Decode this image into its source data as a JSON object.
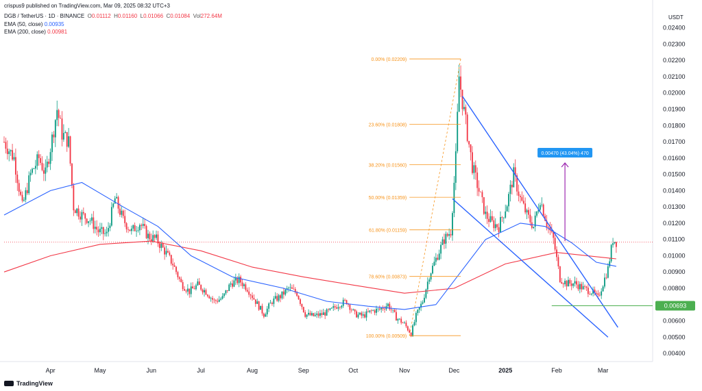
{
  "header": {
    "publisher": "crispus9 published on TradingView.com, Mar 09, 2025 08:32 UTC+3",
    "symbol": "DGB / TetherUS · 1D · BINANCE",
    "ohlc": {
      "o_label": "O",
      "o": "0.01112",
      "h_label": "H",
      "h": "0.01160",
      "l_label": "L",
      "l": "0.01066",
      "c_label": "C",
      "c": "0.01084",
      "vol_label": "Vol",
      "vol": "272.64M"
    },
    "ema50_label": "EMA (50, close)",
    "ema50_value": "0.00935",
    "ema200_label": "EMA (200, close)",
    "ema200_value": "0.00981"
  },
  "branding": "TradingView",
  "colors": {
    "up": "#089981",
    "down": "#f23645",
    "ema50": "#2962ff",
    "ema200": "#f23645",
    "fib": "#f7931a",
    "channel": "#2962ff",
    "support": "#4caf50",
    "measure": "#9c27b0",
    "measure_box": "#2196f3"
  },
  "chart_data": {
    "type": "candlestick",
    "y_axis": {
      "unit": "USDT",
      "min": 0.0035,
      "max": 0.0247,
      "ticks": [
        "0.00400",
        "0.00500",
        "0.00600",
        "0.00700",
        "0.00800",
        "0.00900",
        "0.01000",
        "0.01100",
        "0.01200",
        "0.01300",
        "0.01400",
        "0.01500",
        "0.01600",
        "0.01700",
        "0.01800",
        "0.01900",
        "0.02000",
        "0.02100",
        "0.02200",
        "0.02300",
        "0.02400"
      ]
    },
    "x_axis": {
      "labels": [
        {
          "label": "Apr",
          "date": "2024-04-01"
        },
        {
          "label": "May",
          "date": "2024-05-01"
        },
        {
          "label": "Jun",
          "date": "2024-06-01"
        },
        {
          "label": "Jul",
          "date": "2024-07-01"
        },
        {
          "label": "Aug",
          "date": "2024-08-01"
        },
        {
          "label": "Sep",
          "date": "2024-09-01"
        },
        {
          "label": "Oct",
          "date": "2024-10-01"
        },
        {
          "label": "Nov",
          "date": "2024-11-01"
        },
        {
          "label": "Dec",
          "date": "2024-12-01"
        },
        {
          "label": "2025",
          "date": "2025-01-01",
          "bold": true
        },
        {
          "label": "Feb",
          "date": "2025-02-01"
        },
        {
          "label": "Mar",
          "date": "2025-03-01"
        }
      ],
      "start": "2024-03-04",
      "end": "2025-03-31"
    },
    "close_series": [
      [
        "2024-03-04",
        0.017
      ],
      [
        "2024-03-10",
        0.016
      ],
      [
        "2024-03-15",
        0.013
      ],
      [
        "2024-03-20",
        0.015
      ],
      [
        "2024-03-25",
        0.016
      ],
      [
        "2024-03-29",
        0.015
      ],
      [
        "2024-04-02",
        0.0172
      ],
      [
        "2024-04-05",
        0.019
      ],
      [
        "2024-04-08",
        0.0175
      ],
      [
        "2024-04-12",
        0.017
      ],
      [
        "2024-04-15",
        0.013
      ],
      [
        "2024-04-20",
        0.0125
      ],
      [
        "2024-04-25",
        0.0122
      ],
      [
        "2024-04-30",
        0.0115
      ],
      [
        "2024-05-05",
        0.0113
      ],
      [
        "2024-05-10",
        0.0135
      ],
      [
        "2024-05-15",
        0.0122
      ],
      [
        "2024-05-20",
        0.0115
      ],
      [
        "2024-05-25",
        0.012
      ],
      [
        "2024-05-30",
        0.0112
      ],
      [
        "2024-06-04",
        0.011
      ],
      [
        "2024-06-09",
        0.0103
      ],
      [
        "2024-06-14",
        0.0095
      ],
      [
        "2024-06-19",
        0.0083
      ],
      [
        "2024-06-24",
        0.0078
      ],
      [
        "2024-06-29",
        0.0082
      ],
      [
        "2024-07-04",
        0.0078
      ],
      [
        "2024-07-09",
        0.0072
      ],
      [
        "2024-07-14",
        0.0074
      ],
      [
        "2024-07-19",
        0.0083
      ],
      [
        "2024-07-24",
        0.0085
      ],
      [
        "2024-07-29",
        0.008
      ],
      [
        "2024-08-03",
        0.0072
      ],
      [
        "2024-08-08",
        0.0064
      ],
      [
        "2024-08-13",
        0.0072
      ],
      [
        "2024-08-18",
        0.0075
      ],
      [
        "2024-08-23",
        0.008
      ],
      [
        "2024-08-28",
        0.0077
      ],
      [
        "2024-09-02",
        0.0064
      ],
      [
        "2024-09-07",
        0.0063
      ],
      [
        "2024-09-12",
        0.0064
      ],
      [
        "2024-09-17",
        0.0066
      ],
      [
        "2024-09-22",
        0.007
      ],
      [
        "2024-09-27",
        0.0072
      ],
      [
        "2024-10-02",
        0.0064
      ],
      [
        "2024-10-07",
        0.0063
      ],
      [
        "2024-10-12",
        0.0066
      ],
      [
        "2024-10-17",
        0.0067
      ],
      [
        "2024-10-22",
        0.007
      ],
      [
        "2024-10-27",
        0.0062
      ],
      [
        "2024-11-01",
        0.0058
      ],
      [
        "2024-11-05",
        0.0052
      ],
      [
        "2024-11-08",
        0.0063
      ],
      [
        "2024-11-12",
        0.0072
      ],
      [
        "2024-11-16",
        0.0088
      ],
      [
        "2024-11-20",
        0.0098
      ],
      [
        "2024-11-25",
        0.011
      ],
      [
        "2024-11-29",
        0.0115
      ],
      [
        "2024-12-02",
        0.016
      ],
      [
        "2024-12-04",
        0.021
      ],
      [
        "2024-12-06",
        0.0195
      ],
      [
        "2024-12-09",
        0.0175
      ],
      [
        "2024-12-12",
        0.0155
      ],
      [
        "2024-12-16",
        0.014
      ],
      [
        "2024-12-20",
        0.0125
      ],
      [
        "2024-12-24",
        0.012
      ],
      [
        "2024-12-28",
        0.0118
      ],
      [
        "2025-01-02",
        0.0132
      ],
      [
        "2025-01-06",
        0.015
      ],
      [
        "2025-01-10",
        0.0135
      ],
      [
        "2025-01-14",
        0.0125
      ],
      [
        "2025-01-18",
        0.0118
      ],
      [
        "2025-01-22",
        0.0135
      ],
      [
        "2025-01-26",
        0.012
      ],
      [
        "2025-01-30",
        0.011
      ],
      [
        "2025-02-03",
        0.0086
      ],
      [
        "2025-02-07",
        0.0083
      ],
      [
        "2025-02-12",
        0.0083
      ],
      [
        "2025-02-17",
        0.008
      ],
      [
        "2025-02-22",
        0.0078
      ],
      [
        "2025-02-26",
        0.0074
      ],
      [
        "2025-03-01",
        0.0083
      ],
      [
        "2025-03-04",
        0.0092
      ],
      [
        "2025-03-07",
        0.011
      ],
      [
        "2025-03-09",
        0.01084
      ]
    ],
    "ema50_series": [
      [
        "2024-03-04",
        0.0125
      ],
      [
        "2024-04-01",
        0.014
      ],
      [
        "2024-04-20",
        0.0145
      ],
      [
        "2024-05-15",
        0.013
      ],
      [
        "2024-06-05",
        0.0118
      ],
      [
        "2024-06-25",
        0.01
      ],
      [
        "2024-07-20",
        0.0087
      ],
      [
        "2024-08-20",
        0.008
      ],
      [
        "2024-09-15",
        0.0072
      ],
      [
        "2024-10-10",
        0.0069
      ],
      [
        "2024-11-01",
        0.0067
      ],
      [
        "2024-11-20",
        0.007
      ],
      [
        "2024-12-05",
        0.009
      ],
      [
        "2024-12-20",
        0.011
      ],
      [
        "2025-01-10",
        0.012
      ],
      [
        "2025-01-25",
        0.0118
      ],
      [
        "2025-02-10",
        0.0108
      ],
      [
        "2025-02-25",
        0.0096
      ],
      [
        "2025-03-09",
        0.00935
      ]
    ],
    "ema200_series": [
      [
        "2024-03-04",
        0.009
      ],
      [
        "2024-04-01",
        0.01
      ],
      [
        "2024-05-01",
        0.0107
      ],
      [
        "2024-06-01",
        0.0109
      ],
      [
        "2024-07-01",
        0.0103
      ],
      [
        "2024-08-01",
        0.0093
      ],
      [
        "2024-09-01",
        0.0087
      ],
      [
        "2024-10-01",
        0.0082
      ],
      [
        "2024-11-01",
        0.0077
      ],
      [
        "2024-12-01",
        0.008
      ],
      [
        "2025-01-01",
        0.0095
      ],
      [
        "2025-02-01",
        0.0102
      ],
      [
        "2025-03-09",
        0.00981
      ]
    ],
    "last_price_line": 0.01084,
    "fibonacci": {
      "start_date": "2024-11-04",
      "end_date": "2024-12-05",
      "levels": [
        {
          "label": "0.00% (0.02209)",
          "value": 0.02209
        },
        {
          "label": "23.60% (0.01808)",
          "value": 0.01808
        },
        {
          "label": "38.20% (0.01560)",
          "value": 0.0156
        },
        {
          "label": "50.00% (0.01359)",
          "value": 0.01359
        },
        {
          "label": "61.80% (0.01159)",
          "value": 0.01159
        },
        {
          "label": "78.60% (0.00873)",
          "value": 0.00873
        },
        {
          "label": "100.00% (0.00509)",
          "value": 0.00509
        }
      ]
    },
    "channel": {
      "upper": [
        [
          "2024-12-06",
          0.0198
        ],
        [
          "2025-03-10",
          0.0056
        ]
      ],
      "lower": [
        [
          "2024-11-30",
          0.0135
        ],
        [
          "2025-03-04",
          0.005
        ]
      ]
    },
    "support": {
      "value": 0.00693,
      "label": "0.00693",
      "from": "2025-01-29"
    },
    "measure": {
      "date": "2025-02-06",
      "from": 0.0109,
      "to": 0.0157,
      "label": "0.00470 (43.04%) 470"
    }
  }
}
